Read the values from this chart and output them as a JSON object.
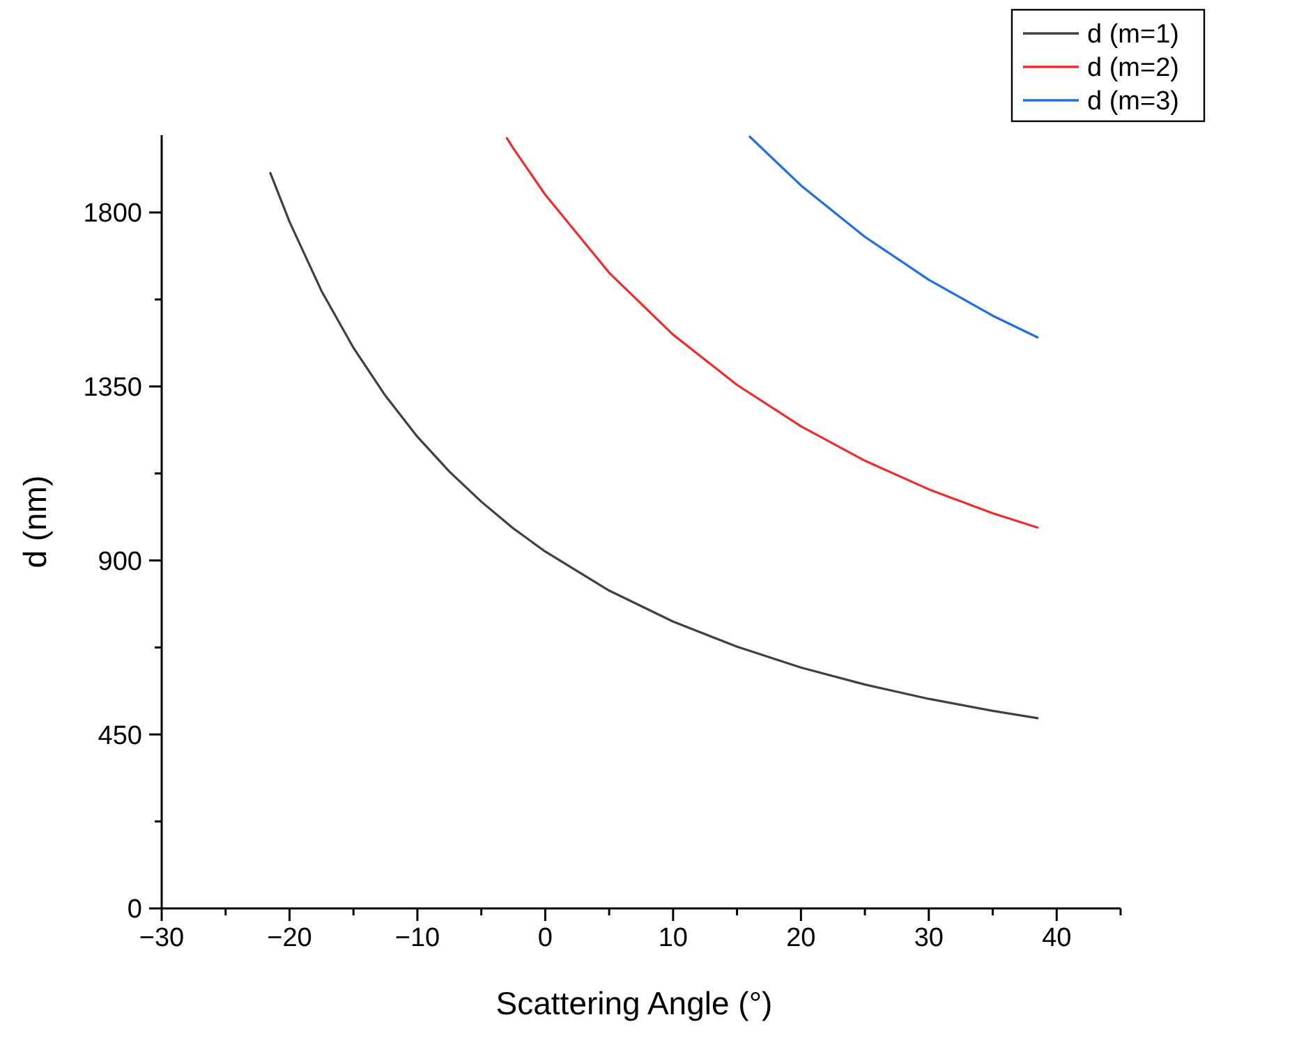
{
  "chart_data": {
    "type": "line",
    "xlabel": "Scattering Angle (°)",
    "ylabel": "d (nm)",
    "xlim": [
      -30,
      45
    ],
    "ylim": [
      0,
      2000
    ],
    "xticks": [
      -30,
      {
        "value": -25,
        "label": null
      },
      -20,
      {
        "value": -15,
        "label": null
      },
      -10,
      {
        "value": -5,
        "label": null
      },
      0,
      {
        "value": 5,
        "label": null
      },
      10,
      {
        "value": 15,
        "label": null
      },
      20,
      {
        "value": 25,
        "label": null
      },
      30,
      {
        "value": 35,
        "label": null
      },
      40,
      {
        "value": 45,
        "label": null
      }
    ],
    "yticks": [
      0,
      {
        "value": 225,
        "label": null
      },
      450,
      {
        "value": 675,
        "label": null
      },
      900,
      {
        "value": 1125,
        "label": null
      },
      1350,
      {
        "value": 1575,
        "label": null
      },
      1800
    ],
    "grid": false,
    "legend": "top right",
    "marker": "none",
    "line_style": "solid",
    "series": [
      {
        "name": "d (m=1)",
        "color": "#404040",
        "x": [
          -21.5,
          -20,
          -17.5,
          -15,
          -12.5,
          -10,
          -7.5,
          -5,
          -2.5,
          0,
          5,
          10,
          15,
          20,
          25,
          30,
          35,
          38.5
        ],
        "values": [
          1902,
          1776,
          1597,
          1450,
          1326,
          1220,
          1130,
          1052,
          983,
          923,
          822,
          742,
          677,
          623,
          579,
          542,
          511,
          492
        ]
      },
      {
        "name": "d (m=2)",
        "color": "#ef2b2b",
        "x": [
          -3,
          -2.5,
          0,
          5,
          10,
          15,
          20,
          25,
          30,
          35,
          38.5
        ],
        "values": [
          1992,
          1966,
          1846,
          1644,
          1484,
          1354,
          1247,
          1158,
          1084,
          1022,
          985
        ]
      },
      {
        "name": "d (m=3)",
        "color": "#1f6fe0",
        "x": [
          16,
          20,
          25,
          30,
          35,
          38.5
        ],
        "values": [
          1996,
          1870,
          1737,
          1626,
          1533,
          1477
        ]
      }
    ]
  }
}
